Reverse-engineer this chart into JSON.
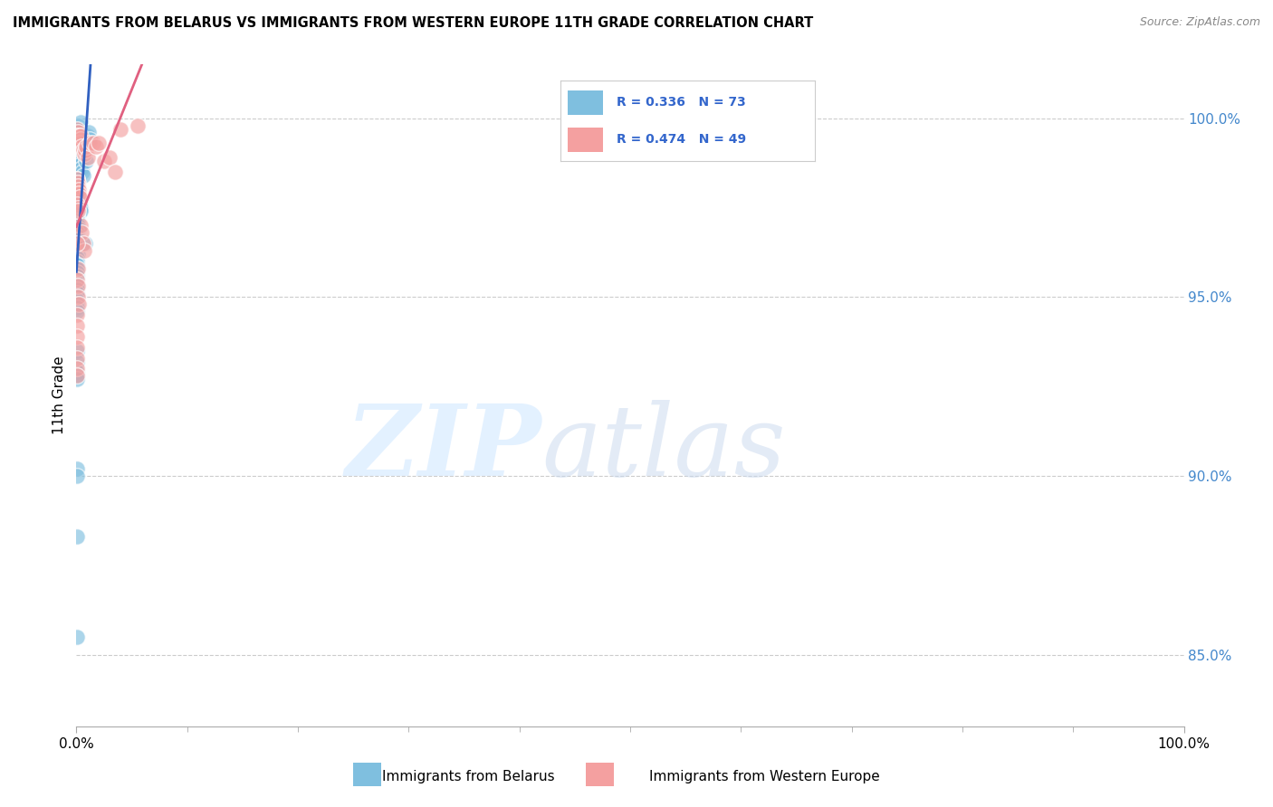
{
  "title": "IMMIGRANTS FROM BELARUS VS IMMIGRANTS FROM WESTERN EUROPE 11TH GRADE CORRELATION CHART",
  "source": "Source: ZipAtlas.com",
  "ylabel": "11th Grade",
  "legend1_label": "Immigrants from Belarus",
  "legend2_label": "Immigrants from Western Europe",
  "R1": 0.336,
  "N1": 73,
  "R2": 0.474,
  "N2": 49,
  "color1": "#7fbfdf",
  "color2": "#f4a0a0",
  "trendline1_color": "#3060c0",
  "trendline2_color": "#e06080",
  "xlim": [
    0,
    100
  ],
  "ylim": [
    83,
    101.5
  ],
  "ytick_positions": [
    85,
    90,
    95,
    100
  ],
  "ytick_labels": [
    "85.0%",
    "90.0%",
    "95.0%",
    "100.0%"
  ],
  "xtick_positions": [
    0,
    100
  ],
  "xtick_labels": [
    "0.0%",
    "100.0%"
  ],
  "belarus_x": [
    0.1,
    0.2,
    0.15,
    0.05,
    0.3,
    0.25,
    0.4,
    0.1,
    0.05,
    0.08,
    0.12,
    0.18,
    0.22,
    0.35,
    0.45,
    0.5,
    0.6,
    0.55,
    0.7,
    0.65,
    0.8,
    0.9,
    1.0,
    1.1,
    1.2,
    0.05,
    0.08,
    0.1,
    0.12,
    0.15,
    0.2,
    0.25,
    0.3,
    0.35,
    0.4,
    0.05,
    0.08,
    0.1,
    0.15,
    0.2,
    0.05,
    0.08,
    0.1,
    0.15,
    0.05,
    0.08,
    0.1,
    0.05,
    0.08,
    0.05,
    0.05,
    0.05,
    0.05,
    0.05,
    0.05,
    0.05,
    0.05,
    0.05,
    0.05,
    0.05,
    0.05,
    0.05,
    0.05,
    0.8,
    0.05,
    0.05,
    0.05,
    0.05,
    0.05,
    0.05,
    0.05,
    0.05,
    0.05
  ],
  "belarus_y": [
    99.8,
    99.7,
    99.6,
    99.5,
    99.5,
    99.4,
    99.9,
    99.3,
    99.2,
    99.1,
    99.0,
    98.9,
    98.8,
    98.7,
    99.1,
    98.6,
    99.2,
    98.5,
    99.3,
    98.4,
    99.0,
    98.8,
    99.5,
    99.6,
    99.4,
    98.3,
    98.2,
    98.1,
    98.0,
    97.9,
    97.8,
    97.7,
    97.6,
    97.5,
    97.4,
    97.3,
    97.2,
    97.1,
    97.0,
    96.9,
    96.8,
    96.7,
    96.6,
    96.5,
    96.4,
    96.3,
    96.2,
    96.1,
    96.0,
    95.9,
    95.8,
    95.7,
    95.6,
    95.5,
    95.4,
    95.3,
    95.2,
    95.1,
    95.0,
    94.9,
    94.8,
    94.7,
    94.6,
    96.5,
    93.5,
    93.2,
    92.9,
    92.8,
    92.7,
    90.2,
    90.0,
    88.3,
    85.5
  ],
  "western_x": [
    0.05,
    0.1,
    0.15,
    0.2,
    0.25,
    0.3,
    0.35,
    0.4,
    0.5,
    0.6,
    0.7,
    0.8,
    0.9,
    1.0,
    1.2,
    1.5,
    1.8,
    2.0,
    2.5,
    3.0,
    3.5,
    4.0,
    0.05,
    0.1,
    0.15,
    0.2,
    0.25,
    0.3,
    0.4,
    0.5,
    0.6,
    0.7,
    0.05,
    0.1,
    0.15,
    0.05,
    0.1,
    0.05,
    0.1,
    0.15,
    0.2,
    0.05,
    0.05,
    0.05,
    0.05,
    0.05,
    0.05,
    0.05,
    5.5
  ],
  "western_y": [
    99.7,
    99.6,
    99.5,
    99.4,
    99.5,
    99.3,
    99.4,
    99.5,
    99.2,
    99.1,
    99.0,
    99.1,
    99.2,
    98.9,
    99.3,
    99.3,
    99.2,
    99.3,
    98.8,
    98.9,
    98.5,
    99.7,
    98.3,
    98.2,
    98.1,
    98.0,
    97.9,
    97.8,
    97.0,
    96.8,
    96.5,
    96.3,
    97.6,
    97.5,
    97.4,
    96.5,
    95.8,
    95.5,
    95.3,
    95.0,
    94.8,
    94.5,
    94.2,
    93.9,
    93.6,
    93.3,
    93.0,
    92.8,
    99.8
  ]
}
